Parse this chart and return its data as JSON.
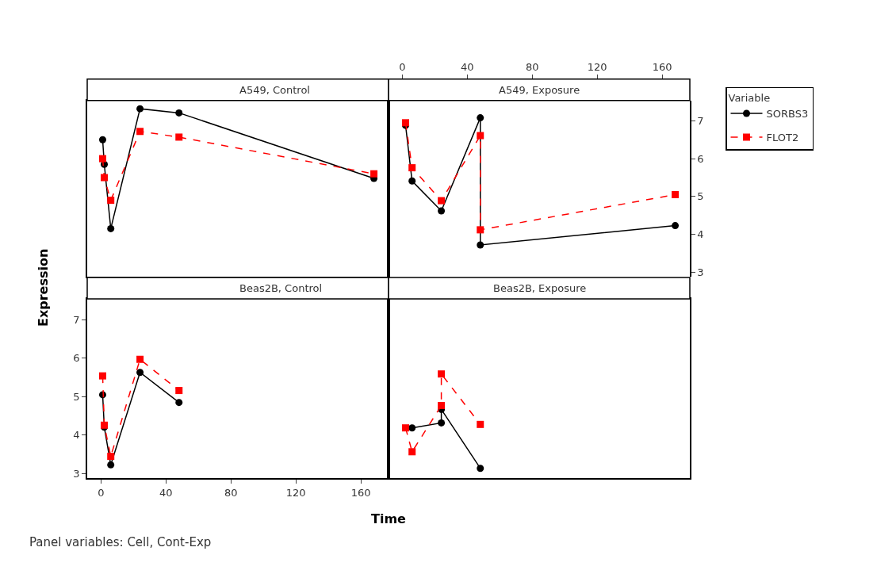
{
  "chart_data": [
    {
      "type": "line",
      "title": "A549, Control",
      "xlabel": "Time",
      "ylabel": "Expression",
      "annotations": [
        "Panel variables: Cell, Cont-Exp"
      ],
      "legend": "right",
      "legend_title": "Variable",
      "xlim": [
        -8.5,
        177
      ],
      "xticks": [
        0,
        40,
        80,
        120,
        160
      ],
      "ylim": [
        2.88,
        7.54
      ],
      "yticks": [
        3,
        4,
        5,
        6,
        7
      ],
      "tick_labels": false,
      "grid": false,
      "series": [
        {
          "name": "SORBS3",
          "color": "#000000",
          "marker": "circle",
          "line_style": "solid",
          "x": [
            1,
            2,
            6,
            24,
            48,
            168
          ],
          "values": [
            6.5,
            5.85,
            4.15,
            7.32,
            7.21,
            5.48
          ]
        },
        {
          "name": "FLOT2",
          "color": "#ff0000",
          "marker": "square",
          "line_style": "dashed",
          "x": [
            1,
            2,
            6,
            24,
            48,
            168
          ],
          "values": [
            6.0,
            5.5,
            4.9,
            6.72,
            6.57,
            5.6
          ]
        }
      ]
    },
    {
      "type": "line",
      "title": "A549, Exposure",
      "xlim": [
        -8.5,
        177
      ],
      "xticks": [
        0,
        40,
        80,
        120,
        160
      ],
      "ylim": [
        2.88,
        7.54
      ],
      "yticks": [
        3,
        4,
        5,
        6,
        7
      ],
      "grid": false,
      "series": [
        {
          "color": "#000000",
          "marker": "circle",
          "line_style": "solid",
          "x": [
            2,
            6,
            24,
            48,
            48,
            168
          ],
          "values": [
            6.88,
            5.41,
            4.62,
            7.08,
            3.72,
            4.23
          ]
        },
        {
          "color": "#ff0000",
          "marker": "square",
          "line_style": "dashed",
          "x": [
            2,
            6,
            24,
            48,
            48,
            168
          ],
          "values": [
            6.95,
            5.76,
            4.89,
            6.61,
            4.12,
            5.05
          ]
        }
      ]
    },
    {
      "type": "line",
      "title": "Beas2B, Control",
      "xlim": [
        -8.5,
        177
      ],
      "xticks": [
        0,
        40,
        80,
        120,
        160
      ],
      "ylim": [
        2.88,
        7.54
      ],
      "yticks": [
        3,
        4,
        5,
        6,
        7
      ],
      "grid": false,
      "series": [
        {
          "color": "#000000",
          "marker": "circle",
          "line_style": "solid",
          "x": [
            1,
            2,
            6,
            24,
            48
          ],
          "values": [
            5.05,
            4.21,
            3.23,
            5.63,
            4.85
          ]
        },
        {
          "color": "#ff0000",
          "marker": "square",
          "line_style": "dashed",
          "x": [
            1,
            2,
            6,
            24,
            48
          ],
          "values": [
            5.54,
            4.26,
            3.45,
            5.97,
            5.16
          ]
        }
      ]
    },
    {
      "type": "line",
      "title": "Beas2B, Exposure",
      "xlim": [
        -8.5,
        177
      ],
      "xticks": [
        0,
        40,
        80,
        120,
        160
      ],
      "ylim": [
        2.88,
        7.54
      ],
      "yticks": [
        3,
        4,
        5,
        6,
        7
      ],
      "tick_labels": false,
      "grid": false,
      "series": [
        {
          "color": "#000000",
          "marker": "circle",
          "line_style": "solid",
          "x": [
            6,
            24,
            24,
            48
          ],
          "values": [
            4.19,
            4.32,
            4.67,
            3.14
          ]
        },
        {
          "color": "#ff0000",
          "marker": "square",
          "line_style": "dashed",
          "x": [
            2,
            6,
            24,
            24,
            48
          ],
          "values": [
            4.19,
            3.57,
            4.77,
            5.59,
            4.28
          ]
        }
      ]
    }
  ]
}
